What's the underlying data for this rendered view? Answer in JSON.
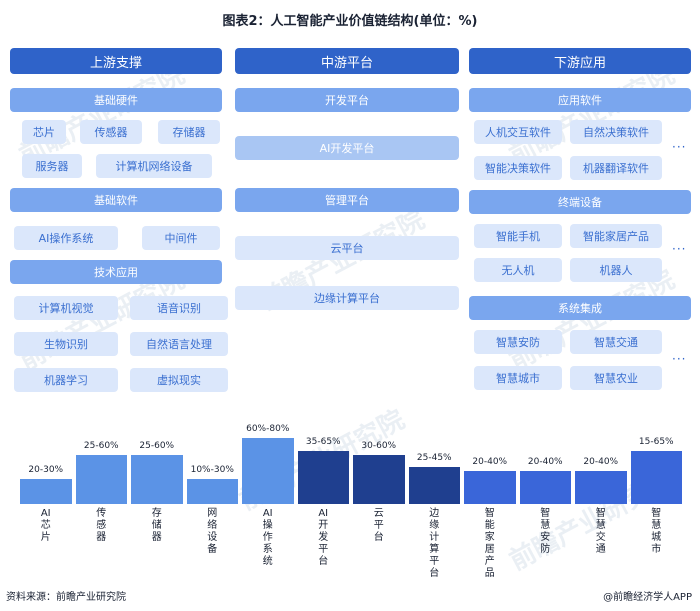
{
  "title": "图表2：人工智能产业价值链结构(单位：%)",
  "columns": {
    "upstream": {
      "header": "上游支撑",
      "basic_hardware": {
        "label": "基础硬件",
        "items": [
          "芯片",
          "传感器",
          "存储器",
          "服务器",
          "计算机网络设备"
        ]
      },
      "basic_software": {
        "label": "基础软件",
        "items": [
          "AI操作系统",
          "中间件"
        ]
      },
      "tech_application": {
        "label": "技术应用",
        "items": [
          "计算机视觉",
          "语音识别",
          "生物识别",
          "自然语言处理",
          "机器学习",
          "虚拟现实"
        ]
      }
    },
    "midstream": {
      "header": "中游平台",
      "dev_platform": {
        "label": "开发平台",
        "items": [
          "AI开发平台"
        ]
      },
      "mgmt_platform": {
        "label": "管理平台",
        "items": [
          "云平台",
          "边缘计算平台"
        ]
      }
    },
    "downstream": {
      "header": "下游应用",
      "app_software": {
        "label": "应用软件",
        "items": [
          "人机交互软件",
          "自然决策软件",
          "智能决策软件",
          "机器翻译软件"
        ]
      },
      "terminal": {
        "label": "终端设备",
        "items": [
          "智能手机",
          "智能家居产品",
          "无人机",
          "机器人"
        ]
      },
      "system_integration": {
        "label": "系统集成",
        "items": [
          "智慧安防",
          "智慧交通",
          "智慧城市",
          "智慧农业"
        ]
      },
      "more": "···"
    }
  },
  "chart_data": {
    "type": "bar",
    "categories": [
      "AI芯片",
      "传感器",
      "存储器",
      "网络设备",
      "AI操作系统",
      "AI开发平台",
      "云平台",
      "边缘计算平台",
      "智能家居产品",
      "智慧安防",
      "智慧交通",
      "智慧城市"
    ],
    "ranges": [
      [
        20,
        30
      ],
      [
        25,
        60
      ],
      [
        25,
        60
      ],
      [
        10,
        30
      ],
      [
        60,
        80
      ],
      [
        35,
        65
      ],
      [
        30,
        60
      ],
      [
        25,
        45
      ],
      [
        20,
        40
      ],
      [
        20,
        40
      ],
      [
        20,
        40
      ],
      [
        15,
        65
      ]
    ],
    "range_labels": [
      "20-30%",
      "25-60%",
      "25-60%",
      "10%-30%",
      "60%-80%",
      "35-65%",
      "30-60%",
      "25-45%",
      "20-40%",
      "20-40%",
      "20-40%",
      "15-65%"
    ],
    "colors": [
      "#5b93e6",
      "#5b93e6",
      "#5b93e6",
      "#5b93e6",
      "#5b93e6",
      "#1f3f8f",
      "#1f3f8f",
      "#1f3f8f",
      "#3a66d9",
      "#3a66d9",
      "#3a66d9",
      "#3a66d9"
    ]
  },
  "footer": {
    "source": "资料来源：前瞻产业研究院",
    "brand": "@前瞻经济学人APP"
  },
  "watermark": "前瞻产业研究院"
}
